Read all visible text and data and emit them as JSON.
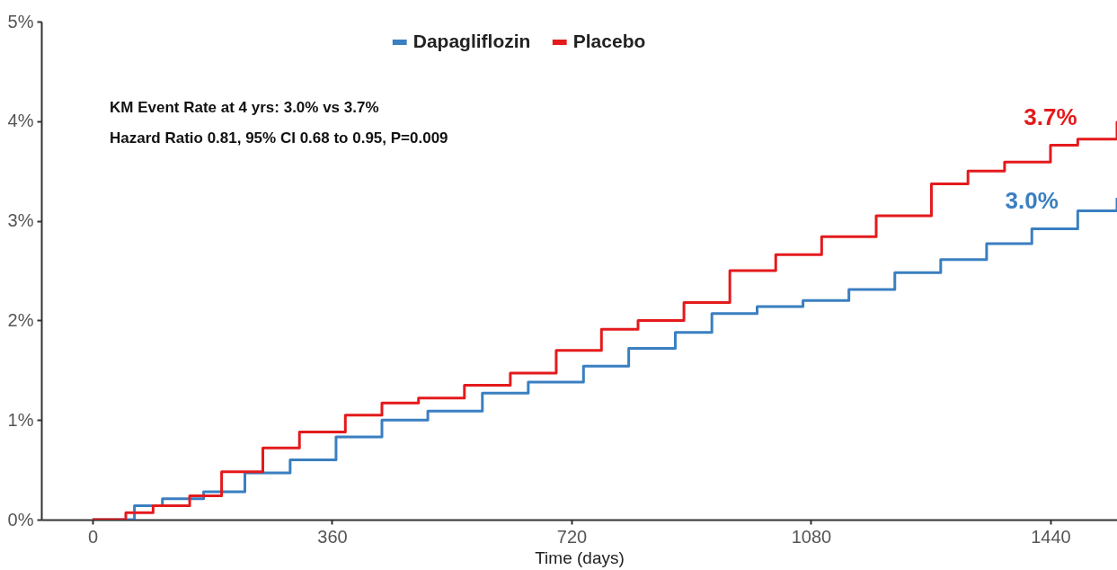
{
  "chart_data": {
    "type": "step",
    "xlabel": "Time (days)",
    "xlim": [
      -77,
      1540
    ],
    "ylim": [
      0,
      5
    ],
    "xticks": [
      0,
      360,
      720,
      1080,
      1440
    ],
    "yticks": [
      {
        "value": 0,
        "label": "0%"
      },
      {
        "value": 1,
        "label": "1%"
      },
      {
        "value": 2,
        "label": "2%"
      },
      {
        "value": 3,
        "label": "3%"
      },
      {
        "value": 4,
        "label": "4%"
      },
      {
        "value": 5,
        "label": "5%"
      }
    ],
    "grid": false,
    "legend": "top",
    "line_style": "solid",
    "annotations": [
      "KM Event Rate at 4 yrs: 3.0% vs 3.7%",
      "Hazard Ratio 0.81, 95% CI 0.68 to 0.95, P=0.009",
      {
        "text": "3.7%",
        "x": 1440,
        "y": 3.76
      },
      {
        "text": "3.0%",
        "x": 1412,
        "y": 2.92
      }
    ],
    "series": [
      {
        "name": "Dapagliflozin",
        "color": "#3a7fc1",
        "x": [
          0,
          63,
          105,
          167,
          229,
          297,
          366,
          435,
          504,
          586,
          655,
          738,
          806,
          876,
          931,
          999,
          1068,
          1137,
          1206,
          1275,
          1344,
          1412,
          1481,
          1540
        ],
        "values": [
          0,
          0.14,
          0.21,
          0.28,
          0.47,
          0.6,
          0.83,
          1.0,
          1.09,
          1.27,
          1.38,
          1.54,
          1.72,
          1.88,
          2.07,
          2.14,
          2.2,
          2.31,
          2.48,
          2.61,
          2.77,
          2.92,
          3.1,
          3.23
        ]
      },
      {
        "name": "Placebo",
        "color": "#e41a1c",
        "x": [
          0,
          50,
          91,
          146,
          194,
          256,
          311,
          380,
          435,
          490,
          559,
          628,
          697,
          765,
          820,
          889,
          958,
          1027,
          1096,
          1178,
          1261,
          1316,
          1371,
          1440,
          1481,
          1540
        ],
        "values": [
          0,
          0.07,
          0.14,
          0.24,
          0.48,
          0.72,
          0.88,
          1.05,
          1.17,
          1.22,
          1.35,
          1.47,
          1.7,
          1.91,
          2.0,
          2.18,
          2.5,
          2.66,
          2.84,
          3.05,
          3.37,
          3.5,
          3.59,
          3.76,
          3.82,
          4.0
        ]
      }
    ]
  }
}
